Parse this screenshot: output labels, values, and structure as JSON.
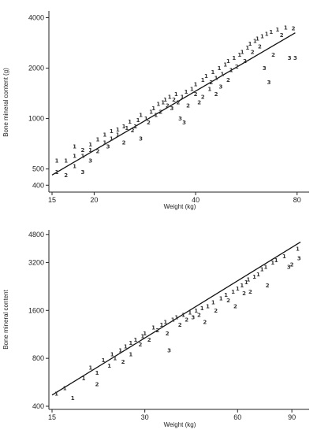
{
  "chart_data": [
    {
      "type": "scatter",
      "title": "",
      "xlabel": "Weight (kg)",
      "ylabel": "Bone mineral content (g)",
      "x_scale": "log",
      "y_scale": "log",
      "xlim": [
        15,
        85
      ],
      "ylim": [
        380,
        4200
      ],
      "x_ticks": [
        15,
        20,
        40,
        80
      ],
      "x_tick_labels": [
        "15",
        "20",
        "40",
        "80"
      ],
      "y_ticks": [
        400,
        500,
        1000,
        2000,
        4000
      ],
      "y_tick_labels": [
        "400",
        "500",
        "1000",
        "2000",
        "4000"
      ],
      "grid": false,
      "legend": "none",
      "marker": "digit (1, 2, 3)",
      "fit_line": [
        [
          15,
          460
        ],
        [
          79,
          3250
        ]
      ],
      "points": [
        [
          15.5,
          480,
          "1"
        ],
        [
          15.5,
          560,
          "1"
        ],
        [
          16.5,
          460,
          "2"
        ],
        [
          16.5,
          560,
          "1"
        ],
        [
          17.5,
          520,
          "1"
        ],
        [
          17.5,
          600,
          "1"
        ],
        [
          17.5,
          680,
          "1"
        ],
        [
          18.5,
          600,
          "1"
        ],
        [
          18.5,
          650,
          "2"
        ],
        [
          18.5,
          480,
          "3"
        ],
        [
          19.5,
          560,
          "3"
        ],
        [
          19.5,
          650,
          "1"
        ],
        [
          19.5,
          700,
          "1"
        ],
        [
          20.5,
          640,
          "2"
        ],
        [
          20.5,
          750,
          "1"
        ],
        [
          21.5,
          720,
          "1"
        ],
        [
          21.5,
          800,
          "1"
        ],
        [
          22,
          680,
          "3"
        ],
        [
          22.5,
          760,
          "1"
        ],
        [
          22.5,
          840,
          "1"
        ],
        [
          23.5,
          800,
          "1"
        ],
        [
          23.5,
          860,
          "1"
        ],
        [
          24.5,
          720,
          "2"
        ],
        [
          24.5,
          900,
          "1"
        ],
        [
          25,
          880,
          "1"
        ],
        [
          25.5,
          960,
          "1"
        ],
        [
          26,
          850,
          "2"
        ],
        [
          26.5,
          900,
          "1"
        ],
        [
          27,
          980,
          "1"
        ],
        [
          27.5,
          1050,
          "1"
        ],
        [
          27.5,
          760,
          "3"
        ],
        [
          28.5,
          1000,
          "1"
        ],
        [
          29,
          950,
          "2"
        ],
        [
          29.5,
          1100,
          "1"
        ],
        [
          30,
          1150,
          "1"
        ],
        [
          30.5,
          1050,
          "1"
        ],
        [
          31,
          1220,
          "1"
        ],
        [
          31.5,
          1100,
          "2"
        ],
        [
          32,
          1250,
          "1"
        ],
        [
          32.5,
          1300,
          "1"
        ],
        [
          33,
          1200,
          "2"
        ],
        [
          33.5,
          1350,
          "1"
        ],
        [
          34,
          1150,
          "3"
        ],
        [
          34.5,
          1300,
          "2"
        ],
        [
          35,
          1400,
          "1"
        ],
        [
          35.5,
          1250,
          "2"
        ],
        [
          36,
          1000,
          "3"
        ],
        [
          36.5,
          1350,
          "1"
        ],
        [
          37,
          950,
          "3"
        ],
        [
          37.5,
          1450,
          "1"
        ],
        [
          38,
          1200,
          "2"
        ],
        [
          39,
          1500,
          "1"
        ],
        [
          40,
          1400,
          "2"
        ],
        [
          40,
          1600,
          "1"
        ],
        [
          41,
          1250,
          "2"
        ],
        [
          42,
          1700,
          "1"
        ],
        [
          42,
          1350,
          "2"
        ],
        [
          43,
          1800,
          "1"
        ],
        [
          44,
          1500,
          "1"
        ],
        [
          44.5,
          1650,
          "2"
        ],
        [
          45,
          1900,
          "1"
        ],
        [
          46,
          1400,
          "2"
        ],
        [
          46,
          1750,
          "1"
        ],
        [
          47,
          2000,
          "1"
        ],
        [
          47.5,
          1550,
          "3"
        ],
        [
          48,
          1850,
          "1"
        ],
        [
          49,
          2100,
          "1"
        ],
        [
          50,
          1700,
          "2"
        ],
        [
          50,
          2200,
          "1"
        ],
        [
          51,
          1950,
          "1"
        ],
        [
          52,
          2300,
          "1"
        ],
        [
          53,
          2050,
          "2"
        ],
        [
          54,
          2400,
          "1"
        ],
        [
          55,
          2500,
          "1"
        ],
        [
          56,
          2200,
          "2"
        ],
        [
          57,
          2650,
          "1"
        ],
        [
          58,
          2800,
          "1"
        ],
        [
          59,
          2500,
          "2"
        ],
        [
          60,
          2900,
          "1"
        ],
        [
          61,
          3000,
          "1"
        ],
        [
          62,
          2700,
          "2"
        ],
        [
          63,
          3100,
          "1"
        ],
        [
          64,
          2000,
          "3"
        ],
        [
          65,
          3200,
          "1"
        ],
        [
          66,
          1650,
          "3"
        ],
        [
          67,
          3300,
          "1"
        ],
        [
          68,
          2400,
          "2"
        ],
        [
          70,
          3400,
          "1"
        ],
        [
          72,
          3150,
          "2"
        ],
        [
          74,
          3500,
          "1"
        ],
        [
          76,
          2300,
          "3"
        ],
        [
          78,
          3450,
          "2"
        ],
        [
          79,
          2300,
          "3"
        ]
      ]
    },
    {
      "type": "scatter",
      "title": "",
      "xlabel": "Weight (kg)",
      "ylabel": "Bone mineral content",
      "x_scale": "log",
      "y_scale": "log",
      "xlim": [
        15,
        100
      ],
      "ylim": [
        400,
        4900
      ],
      "x_ticks": [
        15,
        30,
        60,
        90
      ],
      "x_tick_labels": [
        "15",
        "30",
        "60",
        "90"
      ],
      "y_ticks": [
        400,
        800,
        1600,
        3200,
        4800
      ],
      "y_tick_labels": [
        "400",
        "800",
        "1600",
        "3200",
        "4800"
      ],
      "grid": false,
      "legend": "none",
      "marker": "digit (1, 2, 3)",
      "fit_line": [
        [
          15,
          470
        ],
        [
          96,
          4300
        ]
      ],
      "points": [
        [
          15.5,
          480,
          "1"
        ],
        [
          16.5,
          520,
          "1"
        ],
        [
          17.5,
          450,
          "1"
        ],
        [
          19,
          600,
          "1"
        ],
        [
          20,
          700,
          "1"
        ],
        [
          21,
          650,
          "1"
        ],
        [
          21,
          550,
          "2"
        ],
        [
          22,
          780,
          "1"
        ],
        [
          23,
          720,
          "1"
        ],
        [
          23.5,
          850,
          "1"
        ],
        [
          24,
          800,
          "1"
        ],
        [
          25,
          900,
          "1"
        ],
        [
          25.5,
          760,
          "2"
        ],
        [
          26,
          950,
          "1"
        ],
        [
          27,
          1000,
          "1"
        ],
        [
          27,
          850,
          "1"
        ],
        [
          28,
          1050,
          "1"
        ],
        [
          29,
          980,
          "2"
        ],
        [
          29.5,
          1100,
          "1"
        ],
        [
          30,
          1150,
          "1"
        ],
        [
          31,
          1050,
          "2"
        ],
        [
          32,
          1250,
          "1"
        ],
        [
          33,
          1200,
          "2"
        ],
        [
          34,
          1300,
          "1"
        ],
        [
          35,
          1350,
          "1"
        ],
        [
          35.5,
          1150,
          "2"
        ],
        [
          36,
          900,
          "3"
        ],
        [
          37,
          1400,
          "1"
        ],
        [
          38,
          1450,
          "1"
        ],
        [
          39,
          1300,
          "2"
        ],
        [
          40,
          1500,
          "1"
        ],
        [
          41,
          1400,
          "2"
        ],
        [
          42,
          1550,
          "1"
        ],
        [
          43,
          1450,
          "3"
        ],
        [
          44,
          1600,
          "1"
        ],
        [
          45,
          1500,
          "2"
        ],
        [
          46,
          1650,
          "1"
        ],
        [
          47,
          1350,
          "2"
        ],
        [
          48,
          1700,
          "1"
        ],
        [
          50,
          1800,
          "1"
        ],
        [
          51,
          1600,
          "2"
        ],
        [
          53,
          1900,
          "1"
        ],
        [
          55,
          2000,
          "1"
        ],
        [
          56,
          1850,
          "2"
        ],
        [
          58,
          2100,
          "1"
        ],
        [
          59,
          1700,
          "2"
        ],
        [
          60,
          2200,
          "1"
        ],
        [
          62,
          2300,
          "1"
        ],
        [
          63,
          2050,
          "2"
        ],
        [
          64,
          2400,
          "1"
        ],
        [
          65,
          2500,
          "1"
        ],
        [
          66,
          2100,
          "2"
        ],
        [
          68,
          2600,
          "1"
        ],
        [
          70,
          2700,
          "1"
        ],
        [
          72,
          2900,
          "1"
        ],
        [
          74,
          3000,
          "1"
        ],
        [
          75,
          2300,
          "2"
        ],
        [
          78,
          3200,
          "1"
        ],
        [
          80,
          3300,
          "1"
        ],
        [
          85,
          3500,
          "1"
        ],
        [
          88,
          3000,
          "3"
        ],
        [
          90,
          3100,
          "2"
        ],
        [
          94,
          3900,
          "1"
        ],
        [
          95,
          3400,
          "3"
        ]
      ]
    }
  ]
}
